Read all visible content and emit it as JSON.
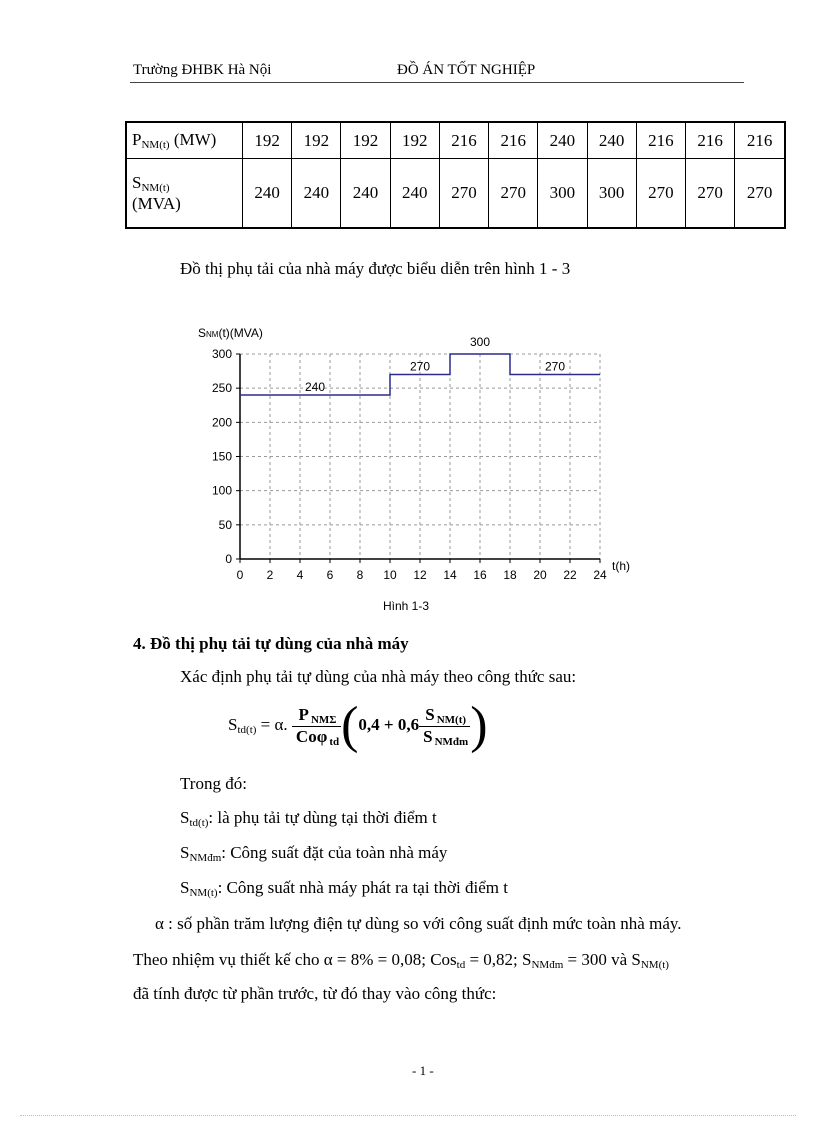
{
  "header": {
    "left": "Trường ĐHBK Hà Nội",
    "center": "ĐỒ ÁN TỐT NGHIỆP"
  },
  "table": {
    "rows": [
      {
        "label_main": "P",
        "label_sub": "NM(t)",
        "label_unit": " (MW)",
        "values": [
          "192",
          "192",
          "192",
          "192",
          "216",
          "216",
          "240",
          "240",
          "216",
          "216",
          "216"
        ]
      },
      {
        "label_main": "S",
        "label_sub": "NM(t)",
        "label_unit": "(MVA)",
        "values": [
          "240",
          "240",
          "240",
          "240",
          "270",
          "270",
          "300",
          "300",
          "270",
          "270",
          "270"
        ]
      }
    ]
  },
  "intro": "Đồ thị phụ tải của nhà máy được biểu diễn trên hình 1 - 3",
  "chart_data": {
    "type": "line",
    "step": true,
    "ylabel_main": "S",
    "ylabel_sub": "NM",
    "ylabel_rest": "(t)(MVA)",
    "xlabel": "t(h)",
    "caption": "Hình 1-3",
    "xlim": [
      0,
      24
    ],
    "ylim": [
      0,
      300
    ],
    "xticks": [
      "0",
      "2",
      "4",
      "6",
      "8",
      "10",
      "12",
      "14",
      "16",
      "18",
      "20",
      "22",
      "24"
    ],
    "yticks": [
      "0",
      "50",
      "100",
      "150",
      "200",
      "250",
      "300"
    ],
    "grid": true,
    "line_color": "#2b2b8c",
    "segments": [
      {
        "t_start": 0,
        "t_end": 10,
        "value": 240,
        "label": "240"
      },
      {
        "t_start": 10,
        "t_end": 14,
        "value": 270,
        "label": "270"
      },
      {
        "t_start": 14,
        "t_end": 18,
        "value": 300,
        "label": "300"
      },
      {
        "t_start": 18,
        "t_end": 24,
        "value": 270,
        "label": "270"
      }
    ]
  },
  "section": {
    "heading": "4. Đồ thị phụ tải tự dùng của nhà máy",
    "intro": "Xác định phụ tải tự dùng của nhà máy theo công thức sau:"
  },
  "formula": {
    "lhs": "S",
    "lhs_sub": "td(t)",
    "eq": " = α.",
    "num": "P",
    "num_sub": "NMΣ",
    "den": "Coφ",
    "den_sub": "td",
    "inner": "0,4 + 0,6",
    "num2": "S",
    "num2_sub": "NM(t)",
    "den2": "S",
    "den2_sub": "NMđm"
  },
  "definitions": {
    "where": "Trong đó:",
    "items": [
      {
        "sym": "S",
        "sub": "td(t)",
        "text": ": là phụ tải tự dùng tại thời điểm t"
      },
      {
        "sym": "S",
        "sub": "NMđm",
        "text": ": Công suất đặt của toàn nhà máy"
      },
      {
        "sym": "S",
        "sub": "NM(t)",
        "text": ": Công suất nhà máy phát ra tại thời điểm t"
      }
    ],
    "alpha": "α : số phần trăm lượng điện tự dùng so với công suất định mức toàn nhà máy."
  },
  "given": {
    "p1": "Theo nhiệm  vụ thiết  kế cho α = 8% = 0,08; Cos",
    "p1_sub": "td",
    "p2": " = 0,82; S",
    "p2_sub": "NMđm",
    "p3": " = 300 và S",
    "p3_sub": "NM(t)",
    "line2": "đã tính được từ phần trước, từ đó thay vào công thức:"
  },
  "footer": {
    "page": "- 1 -"
  }
}
